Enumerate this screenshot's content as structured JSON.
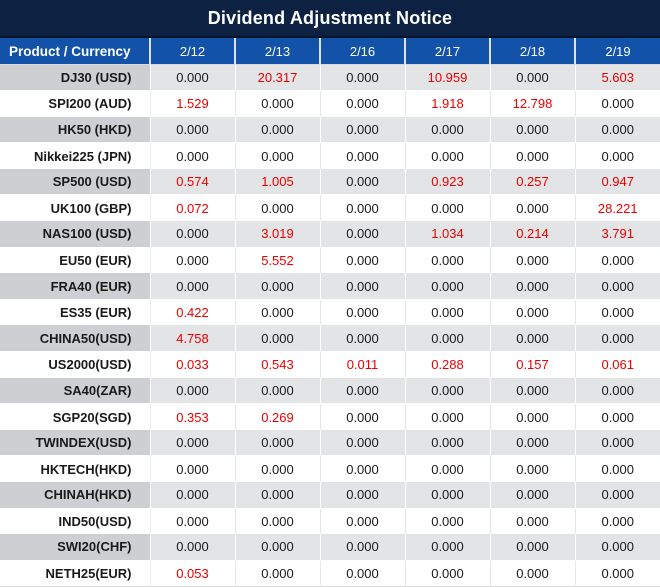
{
  "title": "Dividend Adjustment Notice",
  "colors": {
    "title_bar_bg": "#0d2242",
    "header_bg": "#1252a8",
    "header_text": "#ffffff",
    "gray_row_product_bg": "#cdcfd2",
    "gray_row_value_bg": "#e3e4e5",
    "white_row_bg": "#ffffff",
    "value_text": "#1a1a1a",
    "nonzero_value_red": "#ee0000"
  },
  "chart_data": {
    "type": "table",
    "title": "Dividend Adjustment Notice",
    "product_header": "Product / Currency",
    "date_headers": [
      "2/12",
      "2/13",
      "2/16",
      "2/17",
      "2/18",
      "2/19"
    ],
    "zero_value": "0.000",
    "rows": [
      {
        "product": "DJ30 (USD)",
        "values": [
          "0.000",
          "20.317",
          "0.000",
          "10.959",
          "0.000",
          "5.603"
        ]
      },
      {
        "product": "SPI200 (AUD)",
        "values": [
          "1.529",
          "0.000",
          "0.000",
          "1.918",
          "12.798",
          "0.000"
        ]
      },
      {
        "product": "HK50 (HKD)",
        "values": [
          "0.000",
          "0.000",
          "0.000",
          "0.000",
          "0.000",
          "0.000"
        ]
      },
      {
        "product": "Nikkei225 (JPN)",
        "values": [
          "0.000",
          "0.000",
          "0.000",
          "0.000",
          "0.000",
          "0.000"
        ]
      },
      {
        "product": "SP500 (USD)",
        "values": [
          "0.574",
          "1.005",
          "0.000",
          "0.923",
          "0.257",
          "0.947"
        ]
      },
      {
        "product": "UK100 (GBP)",
        "values": [
          "0.072",
          "0.000",
          "0.000",
          "0.000",
          "0.000",
          "28.221"
        ]
      },
      {
        "product": "NAS100 (USD)",
        "values": [
          "0.000",
          "3.019",
          "0.000",
          "1.034",
          "0.214",
          "3.791"
        ]
      },
      {
        "product": "EU50 (EUR)",
        "values": [
          "0.000",
          "5.552",
          "0.000",
          "0.000",
          "0.000",
          "0.000"
        ]
      },
      {
        "product": "FRA40 (EUR)",
        "values": [
          "0.000",
          "0.000",
          "0.000",
          "0.000",
          "0.000",
          "0.000"
        ]
      },
      {
        "product": "ES35 (EUR)",
        "values": [
          "0.422",
          "0.000",
          "0.000",
          "0.000",
          "0.000",
          "0.000"
        ]
      },
      {
        "product": "CHINA50(USD)",
        "values": [
          "4.758",
          "0.000",
          "0.000",
          "0.000",
          "0.000",
          "0.000"
        ]
      },
      {
        "product": "US2000(USD)",
        "values": [
          "0.033",
          "0.543",
          "0.011",
          "0.288",
          "0.157",
          "0.061"
        ]
      },
      {
        "product": "SA40(ZAR)",
        "values": [
          "0.000",
          "0.000",
          "0.000",
          "0.000",
          "0.000",
          "0.000"
        ]
      },
      {
        "product": "SGP20(SGD)",
        "values": [
          "0.353",
          "0.269",
          "0.000",
          "0.000",
          "0.000",
          "0.000"
        ]
      },
      {
        "product": "TWINDEX(USD)",
        "values": [
          "0.000",
          "0.000",
          "0.000",
          "0.000",
          "0.000",
          "0.000"
        ]
      },
      {
        "product": "HKTECH(HKD)",
        "values": [
          "0.000",
          "0.000",
          "0.000",
          "0.000",
          "0.000",
          "0.000"
        ]
      },
      {
        "product": "CHINAH(HKD)",
        "values": [
          "0.000",
          "0.000",
          "0.000",
          "0.000",
          "0.000",
          "0.000"
        ]
      },
      {
        "product": "IND50(USD)",
        "values": [
          "0.000",
          "0.000",
          "0.000",
          "0.000",
          "0.000",
          "0.000"
        ]
      },
      {
        "product": "SWI20(CHF)",
        "values": [
          "0.000",
          "0.000",
          "0.000",
          "0.000",
          "0.000",
          "0.000"
        ]
      },
      {
        "product": "NETH25(EUR)",
        "values": [
          "0.053",
          "0.000",
          "0.000",
          "0.000",
          "0.000",
          "0.000"
        ]
      }
    ]
  }
}
